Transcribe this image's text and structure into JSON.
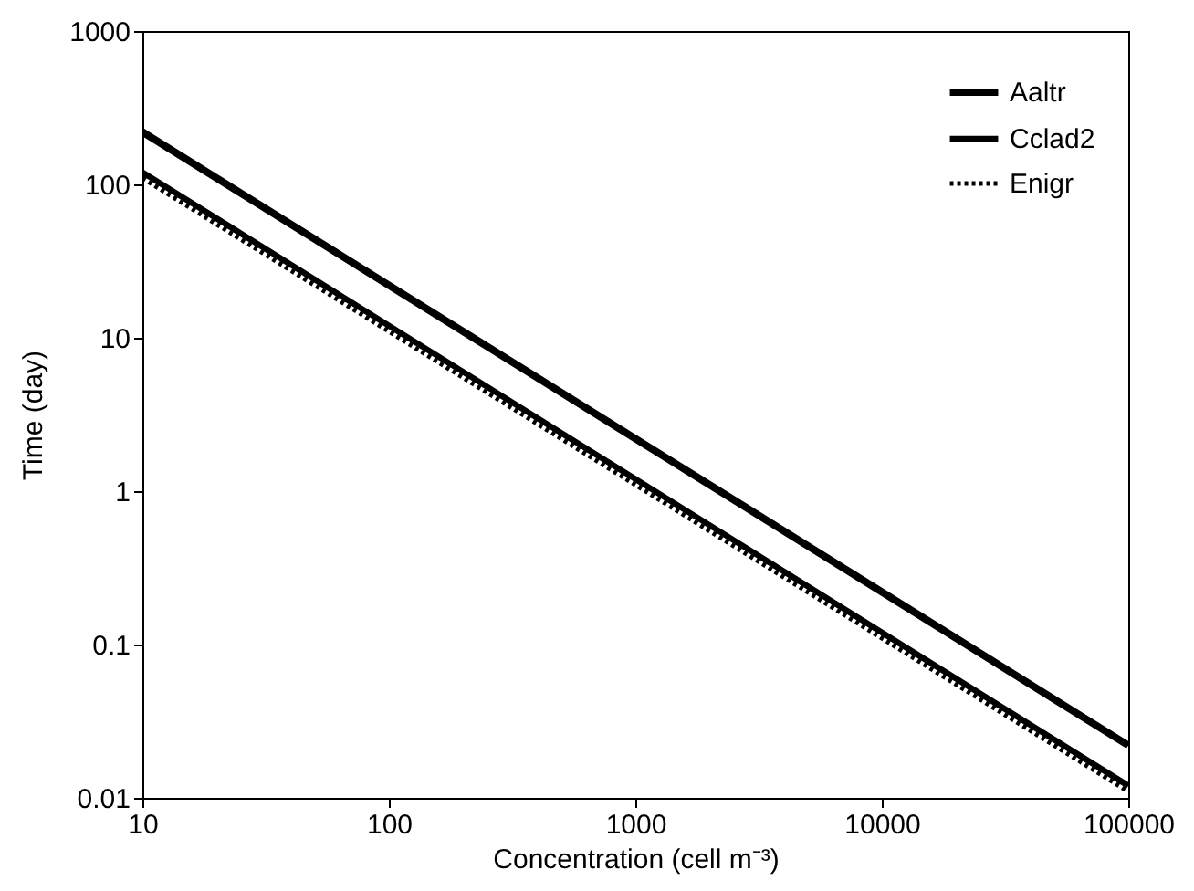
{
  "chart_data": {
    "type": "line",
    "xlabel": "Concentration (cell m⁻³)",
    "ylabel": "Time (day)",
    "x": [
      10,
      100000
    ],
    "series": [
      {
        "name": "Aaltr",
        "color": "#000000",
        "values": [
          220,
          0.022
        ],
        "line_style": "solid"
      },
      {
        "name": "Cclad2",
        "color": "#000000",
        "values": [
          120,
          0.012
        ],
        "line_style": "solid"
      },
      {
        "name": "Enigr",
        "color": "#000000",
        "values": [
          110,
          0.011
        ],
        "line_style": "dotted"
      }
    ],
    "log": "xy",
    "xlim": [
      10,
      100000
    ],
    "ylim": [
      0.01,
      1000
    ],
    "xticks": [
      10,
      100,
      1000,
      10000,
      100000
    ],
    "yticks": [
      0.01,
      0.1,
      1,
      10,
      100,
      1000
    ],
    "grid": false,
    "legend": "top right",
    "marker": "none"
  }
}
